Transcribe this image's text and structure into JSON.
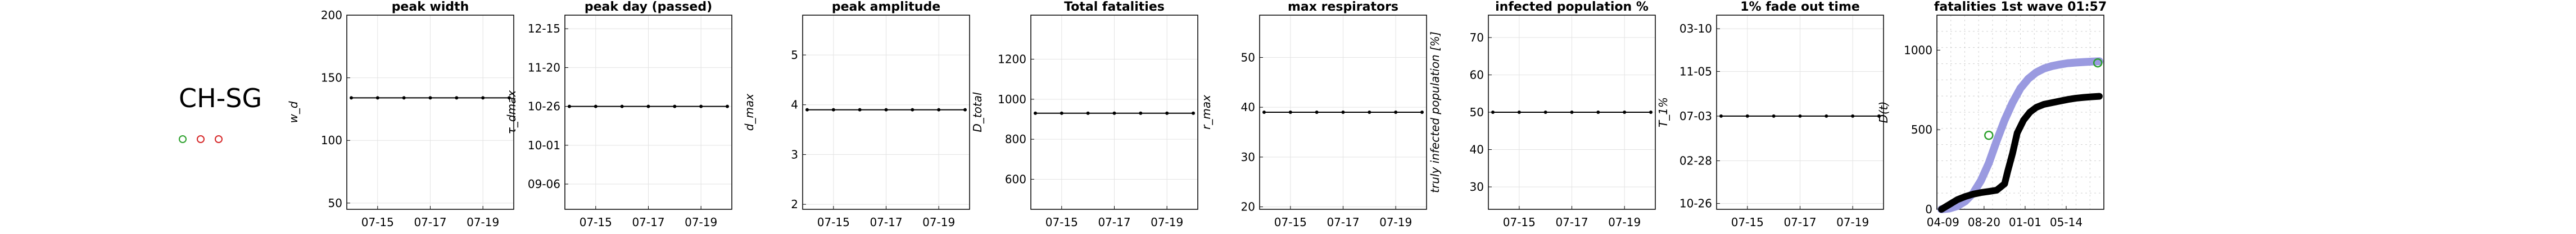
{
  "region": {
    "name": "CH-SG",
    "markers": [
      {
        "name": "green-circle",
        "color": "#2ca02c"
      },
      {
        "name": "red-circle-1",
        "color": "#d62728"
      },
      {
        "name": "red-circle-2",
        "color": "#d62728"
      }
    ]
  },
  "chart_data": [
    {
      "type": "line",
      "title": "peak width",
      "ylabel": "w_d",
      "ylim": [
        45,
        200
      ],
      "x_ticks": [
        "07-15",
        "07-17",
        "07-19"
      ],
      "y_ticks": [
        {
          "v": 50,
          "label": "50"
        },
        {
          "v": 100,
          "label": "100"
        },
        {
          "v": 150,
          "label": "150"
        },
        {
          "v": 200,
          "label": "200"
        }
      ],
      "series": [
        {
          "values": [
            134,
            134,
            134,
            134,
            134,
            134,
            134
          ]
        }
      ]
    },
    {
      "type": "line",
      "title": "peak day (passed)",
      "ylabel": "τ_dmax",
      "ylim": [
        0,
        100
      ],
      "x_ticks": [
        "07-15",
        "07-17",
        "07-19"
      ],
      "y_ticks": [
        {
          "v": 13,
          "label": "09-06"
        },
        {
          "v": 33,
          "label": "10-01"
        },
        {
          "v": 53,
          "label": "10-26"
        },
        {
          "v": 73,
          "label": "11-20"
        },
        {
          "v": 93,
          "label": "12-15"
        }
      ],
      "series": [
        {
          "values": [
            53,
            53,
            53,
            53,
            53,
            53,
            53
          ]
        }
      ]
    },
    {
      "type": "line",
      "title": "peak amplitude",
      "ylabel": "d_max",
      "ylim": [
        1.9,
        5.8
      ],
      "x_ticks": [
        "07-15",
        "07-17",
        "07-19"
      ],
      "y_ticks": [
        {
          "v": 2,
          "label": "2"
        },
        {
          "v": 3,
          "label": "3"
        },
        {
          "v": 4,
          "label": "4"
        },
        {
          "v": 5,
          "label": "5"
        }
      ],
      "series": [
        {
          "values": [
            3.9,
            3.9,
            3.9,
            3.9,
            3.9,
            3.9,
            3.9
          ]
        }
      ]
    },
    {
      "type": "line",
      "title": "Total fatalities",
      "ylabel": "D_total",
      "ylim": [
        450,
        1420
      ],
      "x_ticks": [
        "07-15",
        "07-17",
        "07-19"
      ],
      "y_ticks": [
        {
          "v": 600,
          "label": "600"
        },
        {
          "v": 800,
          "label": "800"
        },
        {
          "v": 1000,
          "label": "1000"
        },
        {
          "v": 1200,
          "label": "1200"
        }
      ],
      "series": [
        {
          "values": [
            930,
            930,
            930,
            930,
            930,
            930,
            930
          ]
        }
      ]
    },
    {
      "type": "line",
      "title": "max respirators",
      "ylabel": "r_max",
      "ylim": [
        19.5,
        58.5
      ],
      "x_ticks": [
        "07-15",
        "07-17",
        "07-19"
      ],
      "y_ticks": [
        {
          "v": 20,
          "label": "20"
        },
        {
          "v": 30,
          "label": "30"
        },
        {
          "v": 40,
          "label": "40"
        },
        {
          "v": 50,
          "label": "50"
        }
      ],
      "series": [
        {
          "values": [
            39,
            39,
            39,
            39,
            39,
            39,
            39
          ]
        }
      ]
    },
    {
      "type": "line",
      "title": "infected population %",
      "ylabel": "truly infected population [%]",
      "ylim": [
        24,
        76
      ],
      "x_ticks": [
        "07-15",
        "07-17",
        "07-19"
      ],
      "y_ticks": [
        {
          "v": 30,
          "label": "30"
        },
        {
          "v": 40,
          "label": "40"
        },
        {
          "v": 50,
          "label": "50"
        },
        {
          "v": 60,
          "label": "60"
        },
        {
          "v": 70,
          "label": "70"
        }
      ],
      "series": [
        {
          "values": [
            50,
            50,
            50,
            50,
            50,
            50,
            50
          ]
        }
      ]
    },
    {
      "type": "line",
      "title": "1% fade out time",
      "ylabel": "T_1%",
      "ylim": [
        0,
        100
      ],
      "x_ticks": [
        "07-15",
        "07-17",
        "07-19"
      ],
      "y_ticks": [
        {
          "v": 3,
          "label": "10-26"
        },
        {
          "v": 25,
          "label": "02-28"
        },
        {
          "v": 48,
          "label": "07-03"
        },
        {
          "v": 71,
          "label": "11-05"
        },
        {
          "v": 93,
          "label": "03-10"
        }
      ],
      "series": [
        {
          "values": [
            48,
            48,
            48,
            48,
            48,
            48,
            48
          ]
        }
      ]
    },
    {
      "type": "line",
      "title": "fatalities 1st wave 01:57",
      "ylabel": "D(t)",
      "xlim": [
        0,
        100
      ],
      "ylim": [
        0,
        1220
      ],
      "x_ticks": [
        {
          "v": 1,
          "label": "04-09"
        },
        {
          "v": 27,
          "label": "08-20"
        },
        {
          "v": 53,
          "label": "01-01"
        },
        {
          "v": 79,
          "label": "05-14"
        }
      ],
      "y_ticks": [
        {
          "v": 0,
          "label": "0"
        },
        {
          "v": 500,
          "label": "500"
        },
        {
          "v": 1000,
          "label": "1000"
        }
      ],
      "series": [
        {
          "color": "#9a9ae0",
          "x": [
            0,
            5,
            10,
            15,
            20,
            25,
            30,
            35,
            40,
            45,
            50,
            55,
            60,
            65,
            70,
            75,
            80,
            85,
            90,
            95,
            100
          ],
          "values": [
            0,
            5,
            20,
            50,
            100,
            180,
            290,
            430,
            560,
            670,
            760,
            820,
            860,
            885,
            900,
            910,
            918,
            922,
            925,
            928,
            930
          ]
        },
        {
          "color": "#000000",
          "x": [
            0,
            5,
            10,
            15,
            20,
            25,
            30,
            35,
            40,
            42,
            45,
            48,
            52,
            56,
            60,
            65,
            70,
            75,
            80,
            85,
            90,
            95,
            100
          ],
          "values": [
            0,
            30,
            60,
            80,
            95,
            105,
            112,
            120,
            160,
            240,
            350,
            480,
            560,
            610,
            640,
            660,
            670,
            680,
            690,
            698,
            703,
            707,
            710
          ]
        }
      ],
      "markers": [
        {
          "x": 30,
          "y": 465,
          "color": "#2ca02c"
        },
        {
          "x": 99,
          "y": 920,
          "color": "#2ca02c"
        }
      ]
    }
  ]
}
